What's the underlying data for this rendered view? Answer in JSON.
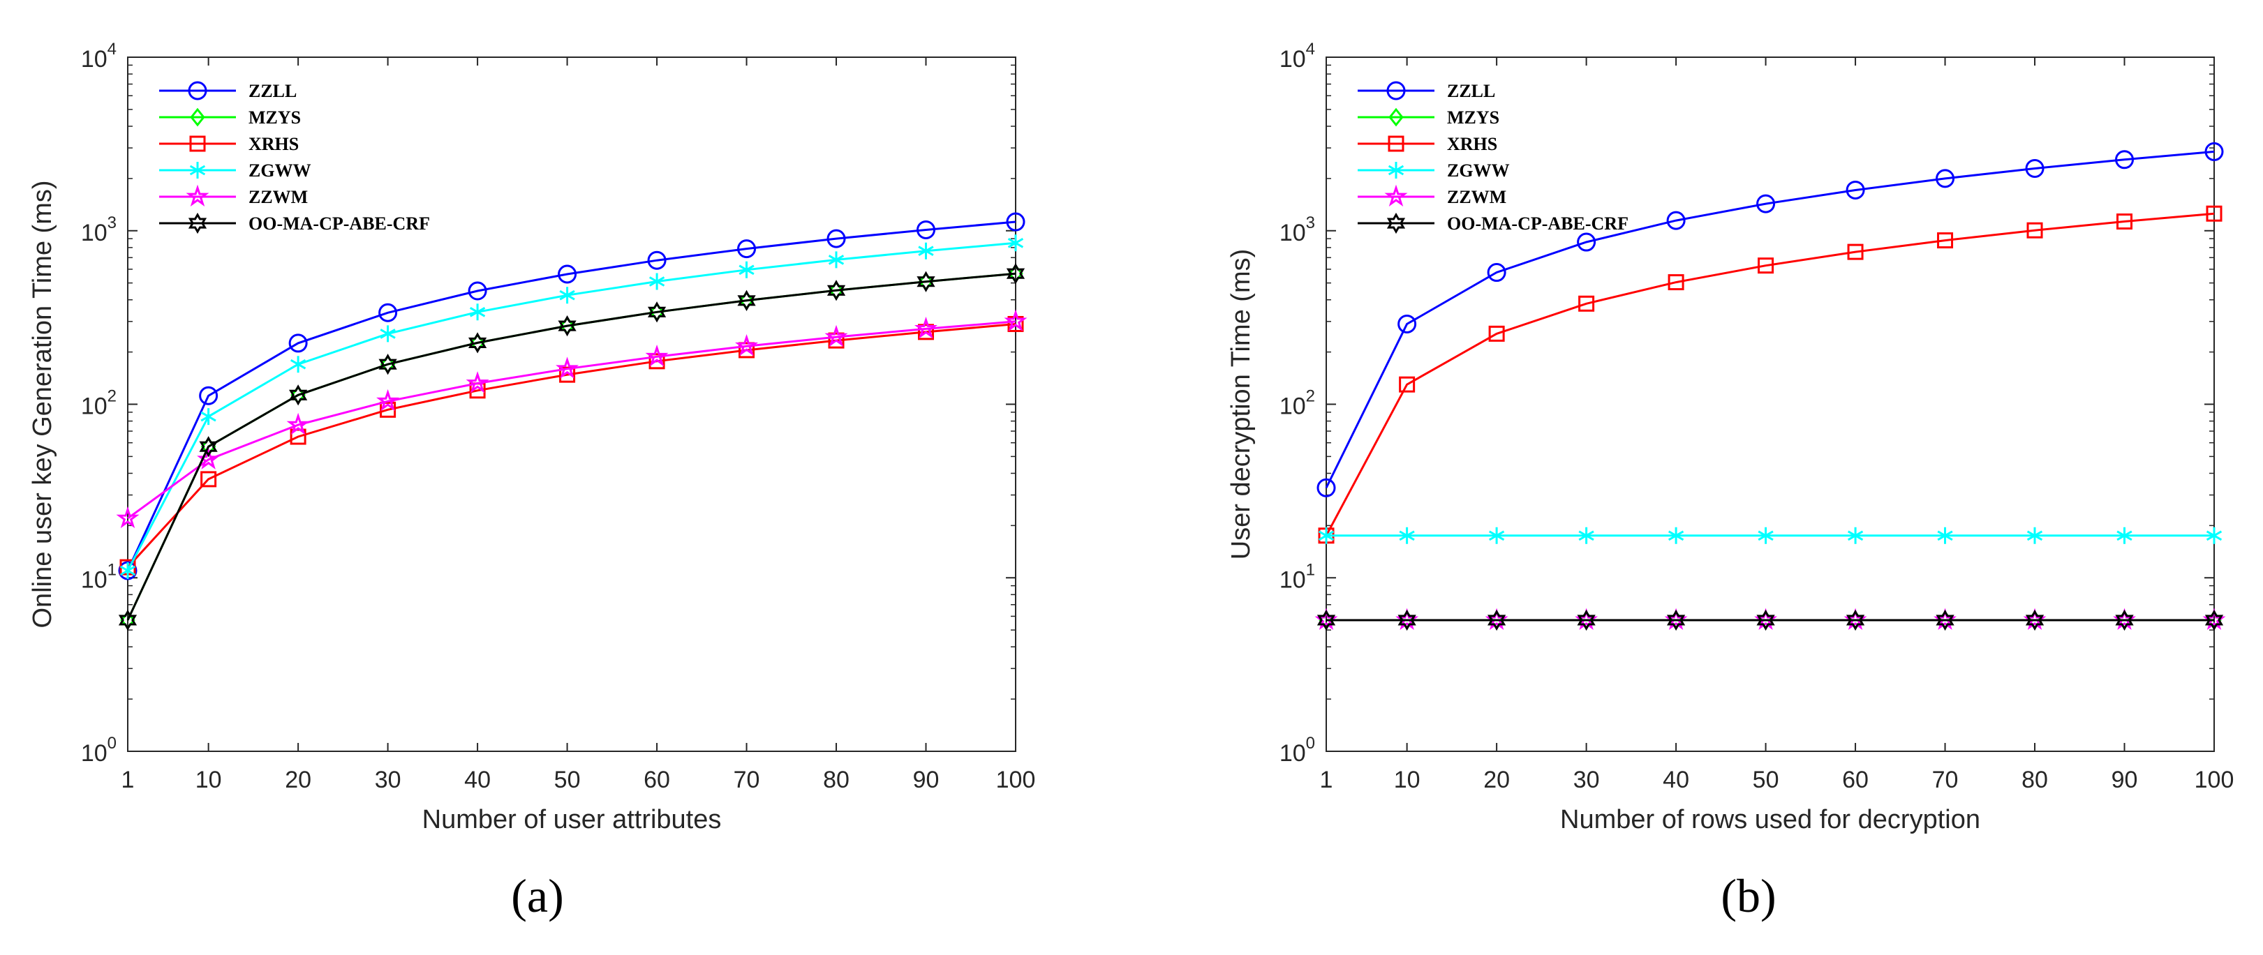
{
  "chart_data": [
    {
      "type": "line",
      "panel": "(a)",
      "yscale": "log",
      "ylim": [
        1,
        10000
      ],
      "xlabel": "Number of user attributes",
      "ylabel": "Online user key Generation Time (ms)",
      "x": [
        1,
        10,
        20,
        30,
        40,
        50,
        60,
        70,
        80,
        90,
        100
      ],
      "xticks": [
        "1",
        "10",
        "20",
        "30",
        "40",
        "50",
        "60",
        "70",
        "80",
        "90",
        "100"
      ],
      "yticks": [
        {
          "base": "10",
          "exp": "0"
        },
        {
          "base": "10",
          "exp": "1"
        },
        {
          "base": "10",
          "exp": "2"
        },
        {
          "base": "10",
          "exp": "3"
        },
        {
          "base": "10",
          "exp": "4"
        }
      ],
      "series": [
        {
          "name": "ZZLL",
          "color": "#0000ff",
          "marker": "circle",
          "values": [
            11,
            112,
            225,
            337,
            450,
            562,
            675,
            787,
            900,
            1012,
            1125
          ]
        },
        {
          "name": "MZYS",
          "color": "#00ff00",
          "marker": "diamond",
          "values": [
            5.7,
            57,
            113,
            170,
            226,
            283,
            340,
            396,
            453,
            509,
            566
          ]
        },
        {
          "name": "XRHS",
          "color": "#ff0000",
          "marker": "square",
          "values": [
            11.5,
            37,
            65,
            93,
            120,
            148,
            177,
            205,
            233,
            261,
            290
          ]
        },
        {
          "name": "ZGWW",
          "color": "#00ffff",
          "marker": "asterisk",
          "values": [
            11,
            85,
            170,
            255,
            340,
            425,
            510,
            595,
            680,
            765,
            850
          ]
        },
        {
          "name": "ZZWM",
          "color": "#ff00ff",
          "marker": "pentagram",
          "values": [
            22,
            48,
            76,
            104,
            132,
            160,
            188,
            216,
            244,
            272,
            300
          ]
        },
        {
          "name": "OO-MA-CP-ABE-CRF",
          "color": "#000000",
          "marker": "hexagram",
          "values": [
            5.7,
            57,
            113,
            170,
            226,
            283,
            340,
            396,
            453,
            509,
            566
          ]
        }
      ],
      "legend": "top-left"
    },
    {
      "type": "line",
      "panel": "(b)",
      "yscale": "log",
      "ylim": [
        1,
        10000
      ],
      "xlabel": "Number of rows used for decryption",
      "ylabel": "User decryption Time (ms)",
      "x": [
        1,
        10,
        20,
        30,
        40,
        50,
        60,
        70,
        80,
        90,
        100
      ],
      "xticks": [
        "1",
        "10",
        "20",
        "30",
        "40",
        "50",
        "60",
        "70",
        "80",
        "90",
        "100"
      ],
      "yticks": [
        {
          "base": "10",
          "exp": "0"
        },
        {
          "base": "10",
          "exp": "1"
        },
        {
          "base": "10",
          "exp": "2"
        },
        {
          "base": "10",
          "exp": "3"
        },
        {
          "base": "10",
          "exp": "4"
        }
      ],
      "series": [
        {
          "name": "ZZLL",
          "color": "#0000ff",
          "marker": "circle",
          "values": [
            33,
            290,
            575,
            860,
            1145,
            1430,
            1715,
            2000,
            2285,
            2570,
            2855
          ]
        },
        {
          "name": "MZYS",
          "color": "#00ff00",
          "marker": "diamond",
          "values": [
            5.7,
            5.7,
            5.7,
            5.7,
            5.7,
            5.7,
            5.7,
            5.7,
            5.7,
            5.7,
            5.7
          ]
        },
        {
          "name": "XRHS",
          "color": "#ff0000",
          "marker": "square",
          "values": [
            17.5,
            130,
            255,
            380,
            505,
            630,
            755,
            880,
            1005,
            1130,
            1255
          ]
        },
        {
          "name": "ZGWW",
          "color": "#00ffff",
          "marker": "asterisk",
          "values": [
            17.5,
            17.5,
            17.5,
            17.5,
            17.5,
            17.5,
            17.5,
            17.5,
            17.5,
            17.5,
            17.5
          ]
        },
        {
          "name": "ZZWM",
          "color": "#ff00ff",
          "marker": "pentagram",
          "values": [
            5.7,
            5.7,
            5.7,
            5.7,
            5.7,
            5.7,
            5.7,
            5.7,
            5.7,
            5.7,
            5.7
          ]
        },
        {
          "name": "OO-MA-CP-ABE-CRF",
          "color": "#000000",
          "marker": "hexagram",
          "values": [
            5.7,
            5.7,
            5.7,
            5.7,
            5.7,
            5.7,
            5.7,
            5.7,
            5.7,
            5.7,
            5.7
          ]
        }
      ],
      "legend": "top-left"
    }
  ]
}
